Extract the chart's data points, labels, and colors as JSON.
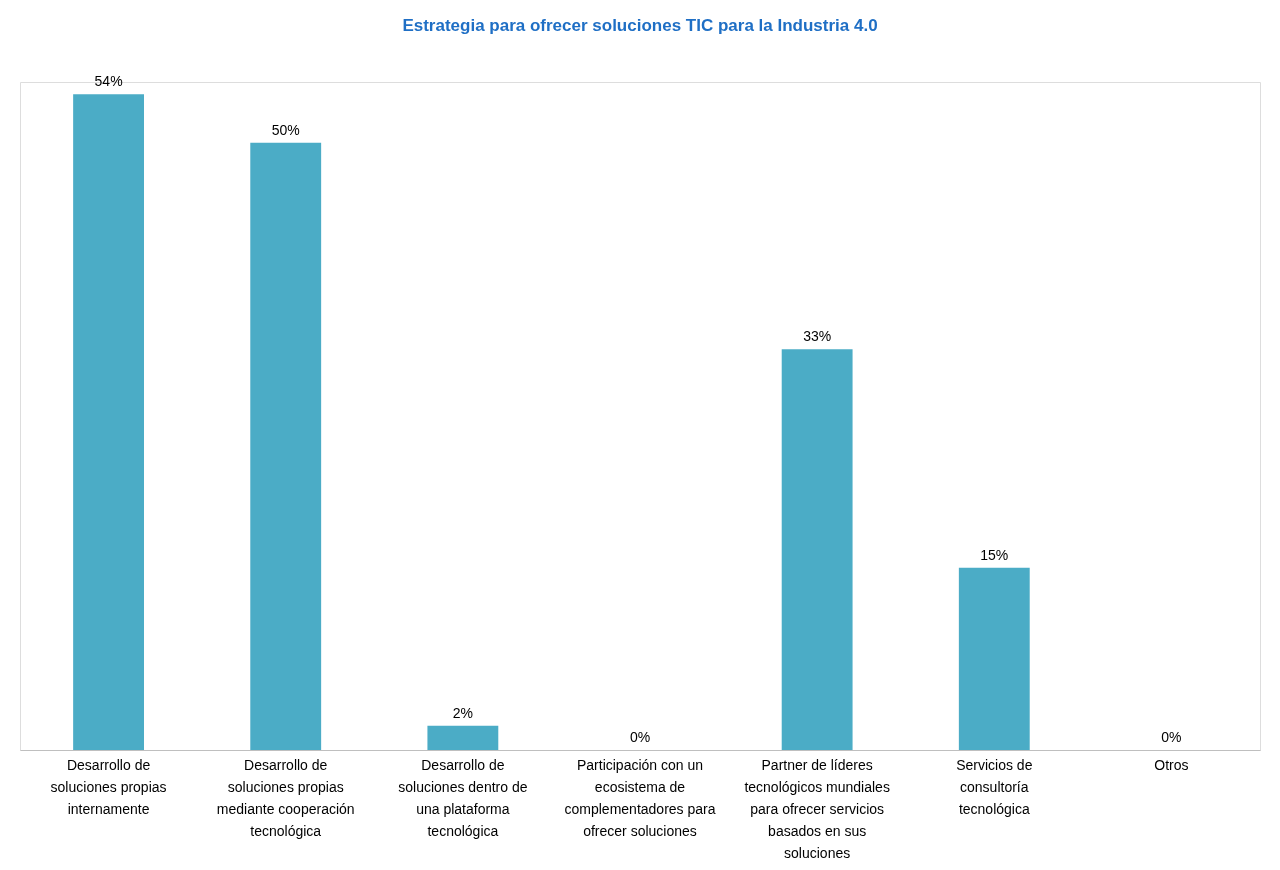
{
  "chart_data": {
    "type": "bar",
    "title": "Estrategia para ofrecer soluciones TIC para la Industria 4.0",
    "categories": [
      "Desarrollo de soluciones propias internamente",
      "Desarrollo de soluciones propias mediante cooperación tecnológica",
      "Desarrollo de soluciones dentro de una plataforma tecnológica",
      "Participación con un ecosistema de complementadores para ofrecer soluciones",
      "Partner de líderes tecnológicos mundiales para ofrecer servicios basados en sus soluciones",
      "Servicios de consultoría tecnológica",
      "Otros"
    ],
    "values": [
      54,
      50,
      2,
      0,
      33,
      15,
      0
    ],
    "value_labels": [
      "54%",
      "50%",
      "2%",
      "0%",
      "33%",
      "15%",
      "0%"
    ],
    "color": "#4bacc6",
    "tick_labels": "x",
    "grid": false
  }
}
